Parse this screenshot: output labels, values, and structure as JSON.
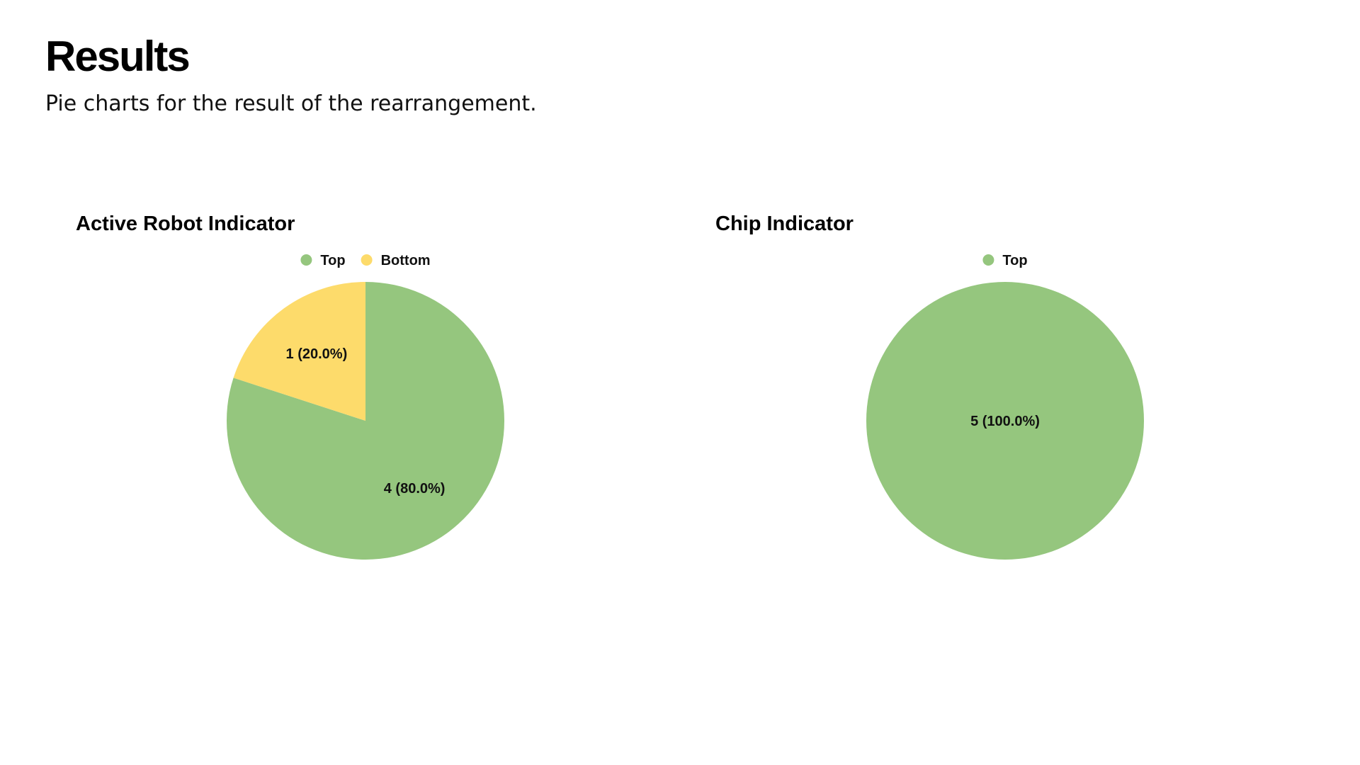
{
  "page": {
    "title": "Results",
    "subtitle": "Pie charts for the result of the rearrangement."
  },
  "colors": {
    "top": "#95c67e",
    "bottom": "#fddb6b"
  },
  "chart_data": [
    {
      "type": "pie",
      "title": "Active Robot Indicator",
      "legend_position": "top-center",
      "slices": [
        {
          "label": "Top",
          "value": 4,
          "percent": 80.0,
          "display": "4 (80.0%)",
          "color": "#95c67e"
        },
        {
          "label": "Bottom",
          "value": 1,
          "percent": 20.0,
          "display": "1 (20.0%)",
          "color": "#fddb6b"
        }
      ]
    },
    {
      "type": "pie",
      "title": "Chip Indicator",
      "legend_position": "top-center",
      "slices": [
        {
          "label": "Top",
          "value": 5,
          "percent": 100.0,
          "display": "5 (100.0%)",
          "color": "#95c67e"
        }
      ]
    }
  ]
}
